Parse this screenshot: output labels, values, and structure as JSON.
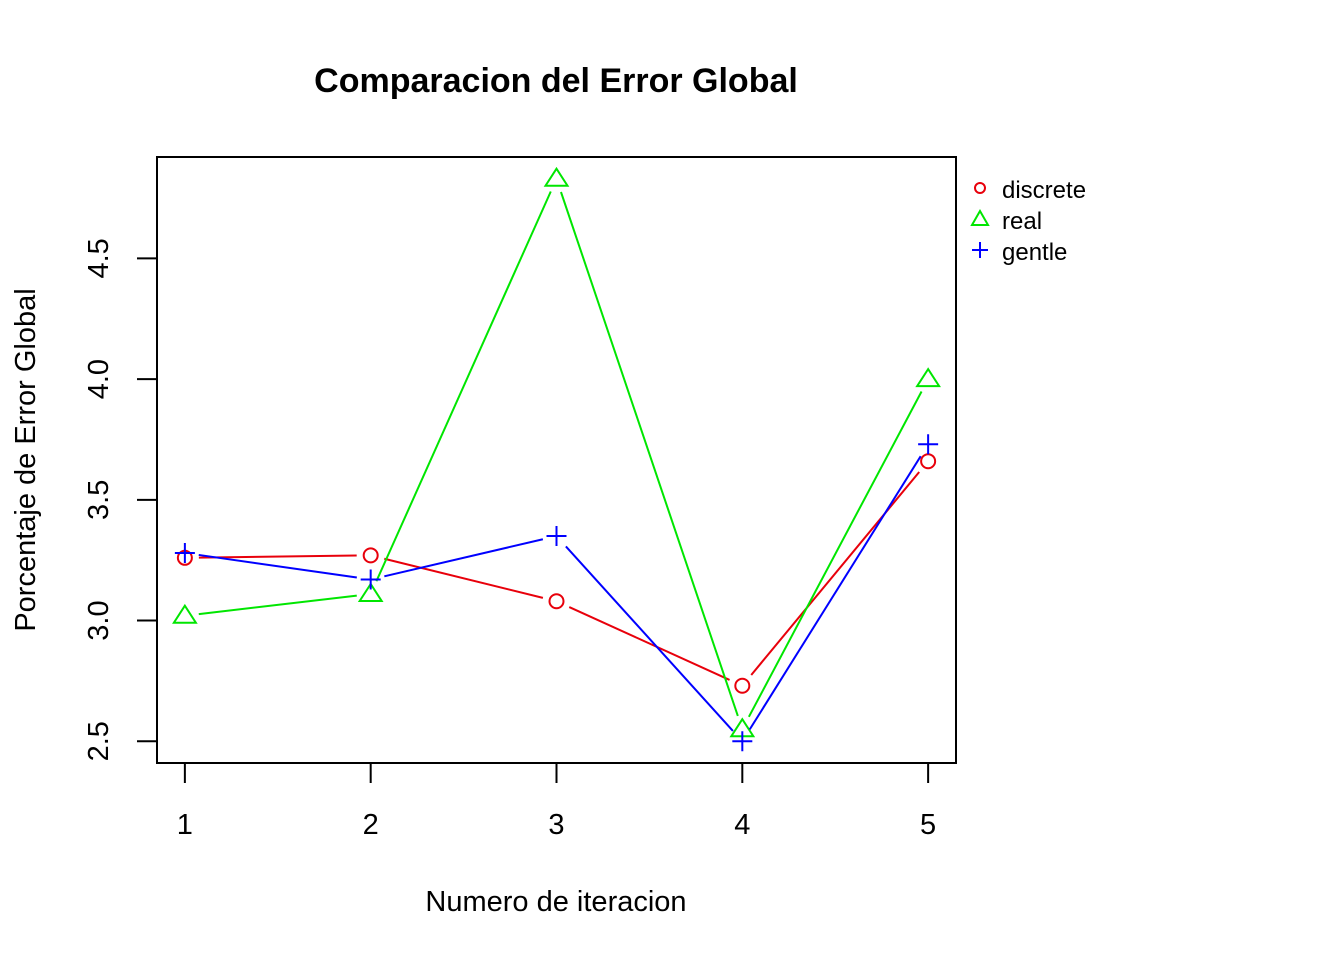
{
  "chart_data": {
    "type": "line",
    "title": "Comparacion del Error Global",
    "xlabel": "Numero de iteracion",
    "ylabel": "Porcentaje de Error Global",
    "x": [
      1,
      2,
      3,
      4,
      5
    ],
    "xlim": [
      0.85,
      5.15
    ],
    "ylim": [
      2.41,
      4.92
    ],
    "xticks": [
      "1",
      "2",
      "3",
      "4",
      "5"
    ],
    "yticks": [
      "2.5",
      "3.0",
      "3.5",
      "4.0",
      "4.5"
    ],
    "grid": false,
    "legend_position": "outside-top-right",
    "series": [
      {
        "name": "discrete",
        "color": "#e8000b",
        "marker": "circle",
        "values": [
          3.26,
          3.27,
          3.08,
          2.73,
          3.66
        ]
      },
      {
        "name": "real",
        "color": "#00e600",
        "marker": "triangle",
        "values": [
          3.02,
          3.11,
          4.83,
          2.55,
          4.0
        ]
      },
      {
        "name": "gentle",
        "color": "#0000ff",
        "marker": "plus",
        "values": [
          3.28,
          3.17,
          3.35,
          2.5,
          3.73
        ]
      }
    ]
  }
}
